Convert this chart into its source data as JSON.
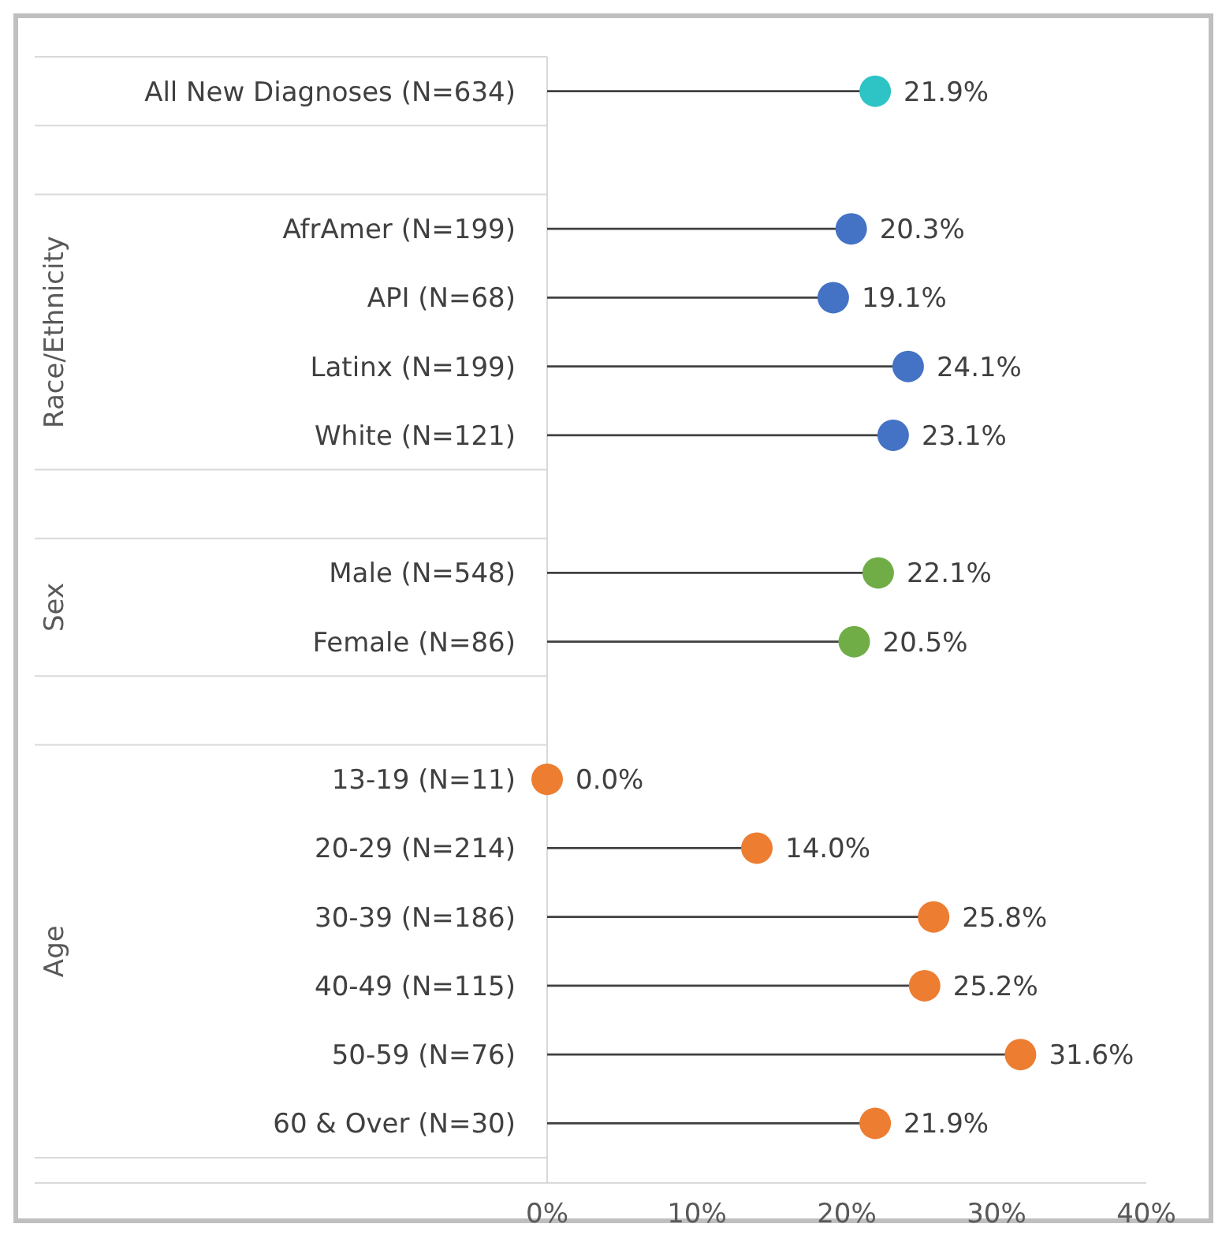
{
  "chart_data": {
    "type": "lollipop",
    "orientation": "horizontal",
    "categories": [
      "All New Diagnoses (N=634)",
      null,
      "AfrAmer (N=199)",
      "API (N=68)",
      "Latinx (N=199)",
      "White (N=121)",
      null,
      "Male (N=548)",
      "Female (N=86)",
      null,
      "13-19 (N=11)",
      "20-29 (N=214)",
      "30-39 (N=186)",
      "40-49 (N=115)",
      "50-59 (N=76)",
      "60 & Over (N=30)"
    ],
    "values": [
      21.9,
      null,
      20.3,
      19.1,
      24.1,
      23.1,
      null,
      22.1,
      20.5,
      null,
      0.0,
      14.0,
      25.8,
      25.2,
      31.6,
      21.9
    ],
    "value_labels": [
      "21.9%",
      null,
      "20.3%",
      "19.1%",
      "24.1%",
      "23.1%",
      null,
      "22.1%",
      "20.5%",
      null,
      "0.0%",
      "14.0%",
      "25.8%",
      "25.2%",
      "31.6%",
      "21.9%"
    ],
    "colors": [
      "#2ec4c6",
      null,
      "#4472c4",
      "#4472c4",
      "#4472c4",
      "#4472c4",
      null,
      "#70ad47",
      "#70ad47",
      null,
      "#ed7d31",
      "#ed7d31",
      "#ed7d31",
      "#ed7d31",
      "#ed7d31",
      "#ed7d31"
    ],
    "annotations": [
      "Race/Ethnicity",
      "Sex",
      "Age"
    ],
    "xlim": [
      0,
      40
    ],
    "xticks": [
      {
        "value": 0,
        "label": "0%"
      },
      {
        "value": 10,
        "label": "10%"
      },
      {
        "value": 20,
        "label": "20%"
      },
      {
        "value": 30,
        "label": "30%"
      },
      {
        "value": 40,
        "label": "40%"
      }
    ],
    "marker": "circle",
    "grid": false
  }
}
